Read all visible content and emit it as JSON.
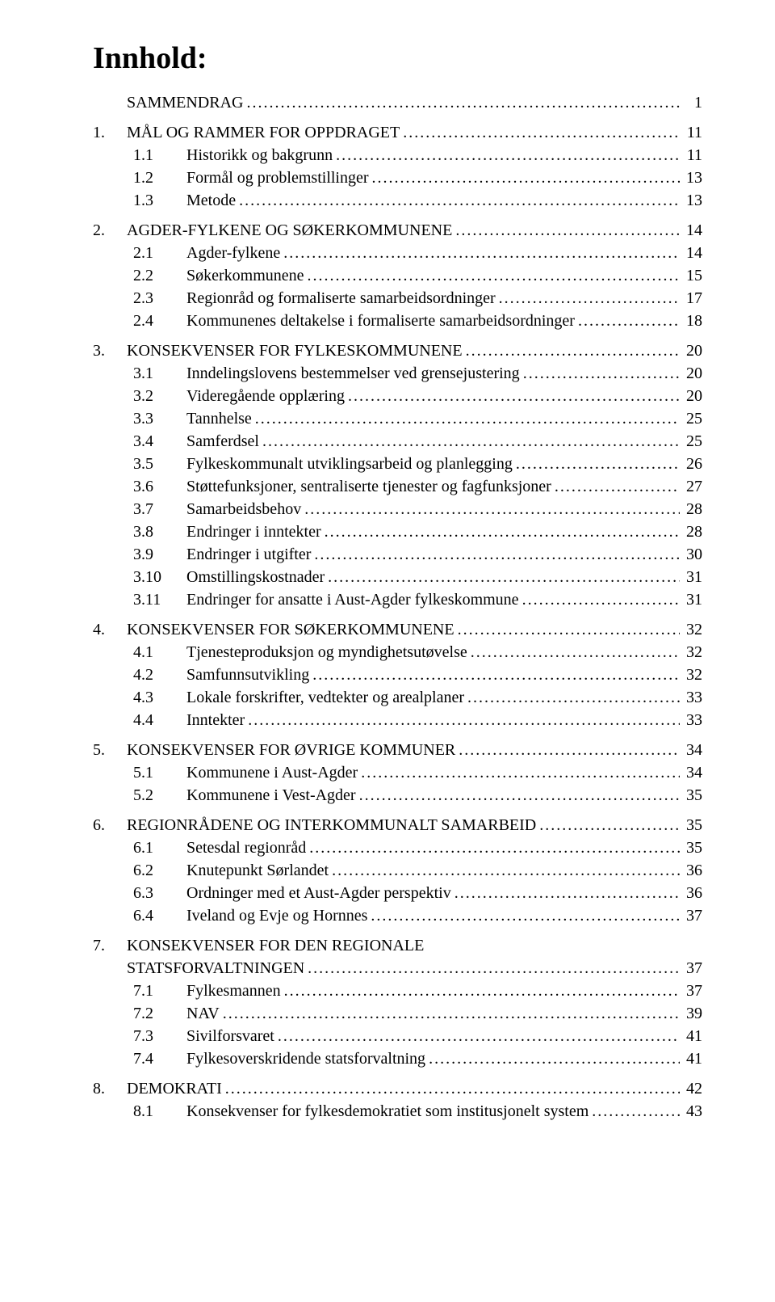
{
  "title": "Innhold:",
  "dots": "............................................................................................................................................................................................................",
  "toc": [
    {
      "level": 0,
      "num": "",
      "text": "SAMMENDRAG",
      "page": "1"
    },
    {
      "level": 0,
      "num": "1.",
      "text": "MÅL OG RAMMER FOR OPPDRAGET",
      "page": "11"
    },
    {
      "level": 1,
      "num": "1.1",
      "text": "Historikk og bakgrunn",
      "page": "11"
    },
    {
      "level": 1,
      "num": "1.2",
      "text": "Formål og problemstillinger",
      "page": "13"
    },
    {
      "level": 1,
      "num": "1.3",
      "text": "Metode",
      "page": "13"
    },
    {
      "level": 0,
      "num": "2.",
      "text": "AGDER-FYLKENE OG SØKERKOMMUNENE",
      "page": "14"
    },
    {
      "level": 1,
      "num": "2.1",
      "text": "Agder-fylkene",
      "page": "14"
    },
    {
      "level": 1,
      "num": "2.2",
      "text": "Søkerkommunene",
      "page": "15"
    },
    {
      "level": 1,
      "num": "2.3",
      "text": "Regionråd og formaliserte samarbeidsordninger",
      "page": "17"
    },
    {
      "level": 1,
      "num": "2.4",
      "text": "Kommunenes deltakelse i formaliserte samarbeidsordninger",
      "page": "18"
    },
    {
      "level": 0,
      "num": "3.",
      "text": "KONSEKVENSER FOR FYLKESKOMMUNENE",
      "page": "20"
    },
    {
      "level": 1,
      "num": "3.1",
      "text": "Inndelingslovens bestemmelser ved grensejustering",
      "page": "20"
    },
    {
      "level": 1,
      "num": "3.2",
      "text": "Videregående opplæring",
      "page": "20"
    },
    {
      "level": 1,
      "num": "3.3",
      "text": "Tannhelse",
      "page": "25"
    },
    {
      "level": 1,
      "num": "3.4",
      "text": "Samferdsel",
      "page": "25"
    },
    {
      "level": 1,
      "num": "3.5",
      "text": "Fylkeskommunalt utviklingsarbeid og planlegging",
      "page": "26"
    },
    {
      "level": 1,
      "num": "3.6",
      "text": "Støttefunksjoner, sentraliserte tjenester og fagfunksjoner",
      "page": "27"
    },
    {
      "level": 1,
      "num": "3.7",
      "text": "Samarbeidsbehov",
      "page": "28"
    },
    {
      "level": 1,
      "num": "3.8",
      "text": "Endringer i inntekter",
      "page": "28"
    },
    {
      "level": 1,
      "num": "3.9",
      "text": "Endringer i utgifter",
      "page": "30"
    },
    {
      "level": 1,
      "num": "3.10",
      "text": "Omstillingskostnader",
      "page": "31"
    },
    {
      "level": 1,
      "num": "3.11",
      "text": "Endringer for ansatte i Aust-Agder fylkeskommune",
      "page": "31"
    },
    {
      "level": 0,
      "num": "4.",
      "text": "KONSEKVENSER FOR SØKERKOMMUNENE",
      "page": "32"
    },
    {
      "level": 1,
      "num": "4.1",
      "text": "Tjenesteproduksjon og myndighetsutøvelse",
      "page": "32"
    },
    {
      "level": 1,
      "num": "4.2",
      "text": "Samfunnsutvikling",
      "page": "32"
    },
    {
      "level": 1,
      "num": "4.3",
      "text": "Lokale forskrifter, vedtekter og arealplaner",
      "page": "33"
    },
    {
      "level": 1,
      "num": "4.4",
      "text": "Inntekter",
      "page": "33"
    },
    {
      "level": 0,
      "num": "5.",
      "text": "KONSEKVENSER FOR ØVRIGE KOMMUNER",
      "page": "34"
    },
    {
      "level": 1,
      "num": "5.1",
      "text": "Kommunene i Aust-Agder",
      "page": "34"
    },
    {
      "level": 1,
      "num": "5.2",
      "text": "Kommunene i Vest-Agder",
      "page": "35"
    },
    {
      "level": 0,
      "num": "6.",
      "text": "REGIONRÅDENE OG INTERKOMMUNALT SAMARBEID",
      "page": "35"
    },
    {
      "level": 1,
      "num": "6.1",
      "text": "Setesdal regionråd",
      "page": "35"
    },
    {
      "level": 1,
      "num": "6.2",
      "text": "Knutepunkt Sørlandet",
      "page": "36"
    },
    {
      "level": 1,
      "num": "6.3",
      "text": "Ordninger med et Aust-Agder perspektiv",
      "page": "36"
    },
    {
      "level": 1,
      "num": "6.4",
      "text": "Iveland og Evje og Hornnes",
      "page": "37"
    },
    {
      "level": 0,
      "num": "7.",
      "text": "KONSEKVENSER FOR DEN REGIONALE STATSFORVALTNINGEN",
      "page": "37",
      "wrap": true
    },
    {
      "level": 1,
      "num": "7.1",
      "text": "Fylkesmannen",
      "page": "37"
    },
    {
      "level": 1,
      "num": "7.2",
      "text": "NAV",
      "page": "39"
    },
    {
      "level": 1,
      "num": "7.3",
      "text": "Sivilforsvaret",
      "page": "41"
    },
    {
      "level": 1,
      "num": "7.4",
      "text": "Fylkesoverskridende statsforvaltning",
      "page": "41"
    },
    {
      "level": 0,
      "num": "8.",
      "text": "DEMOKRATI",
      "page": "42"
    },
    {
      "level": 1,
      "num": "8.1",
      "text": "Konsekvenser for fylkesdemokratiet som institusjonelt system",
      "page": "43"
    }
  ]
}
